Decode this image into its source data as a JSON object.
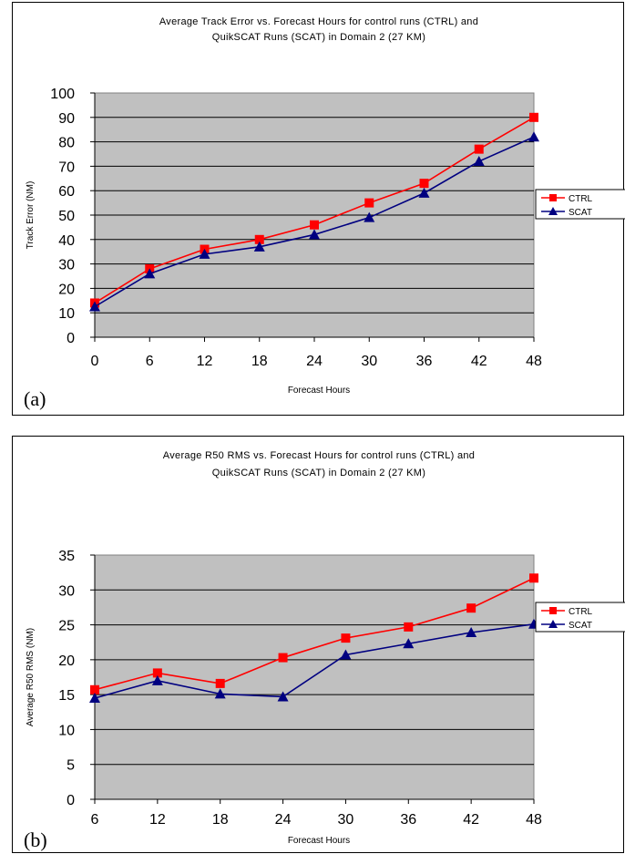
{
  "chart_data": [
    {
      "type": "line",
      "panel_label": "(a)",
      "title_lines": [
        "Average Track Error vs. Forecast Hours for control runs (CTRL) and",
        "QuikSCAT Runs (SCAT) in Domain 2 (27 KM)"
      ],
      "xlabel": "Forecast Hours",
      "ylabel": "Track Error (NM)",
      "categories": [
        "0",
        "6",
        "12",
        "18",
        "24",
        "30",
        "36",
        "42",
        "48"
      ],
      "ylim": [
        0,
        100
      ],
      "ytick_step": 10,
      "grid": true,
      "legend_position": "right",
      "series": [
        {
          "name": "CTRL",
          "color": "#ff0000",
          "marker": "square",
          "values": [
            14,
            28,
            36,
            40,
            46,
            55,
            63,
            77,
            90
          ]
        },
        {
          "name": "SCAT",
          "color": "#000080",
          "marker": "triangle",
          "values": [
            12.5,
            26,
            34,
            37,
            42,
            49,
            59,
            72,
            82
          ]
        }
      ]
    },
    {
      "type": "line",
      "panel_label": "(b)",
      "title_lines": [
        "Average R50 RMS vs. Forecast Hours for control runs (CTRL) and",
        "QuikSCAT Runs (SCAT) in Domain 2 (27 KM)"
      ],
      "xlabel": "Forecast Hours",
      "ylabel": "Average R50 RMS (NM)",
      "categories": [
        "6",
        "12",
        "18",
        "24",
        "30",
        "36",
        "42",
        "48"
      ],
      "ylim": [
        0,
        35
      ],
      "ytick_step": 5,
      "grid": true,
      "legend_position": "right",
      "series": [
        {
          "name": "CTRL",
          "color": "#ff0000",
          "marker": "square",
          "values": [
            15.7,
            18.1,
            16.6,
            20.3,
            23.1,
            24.7,
            27.4,
            31.7
          ]
        },
        {
          "name": "SCAT",
          "color": "#000080",
          "marker": "triangle",
          "values": [
            14.5,
            17.0,
            15.1,
            14.7,
            20.7,
            22.3,
            23.9,
            25.1
          ]
        }
      ]
    }
  ]
}
